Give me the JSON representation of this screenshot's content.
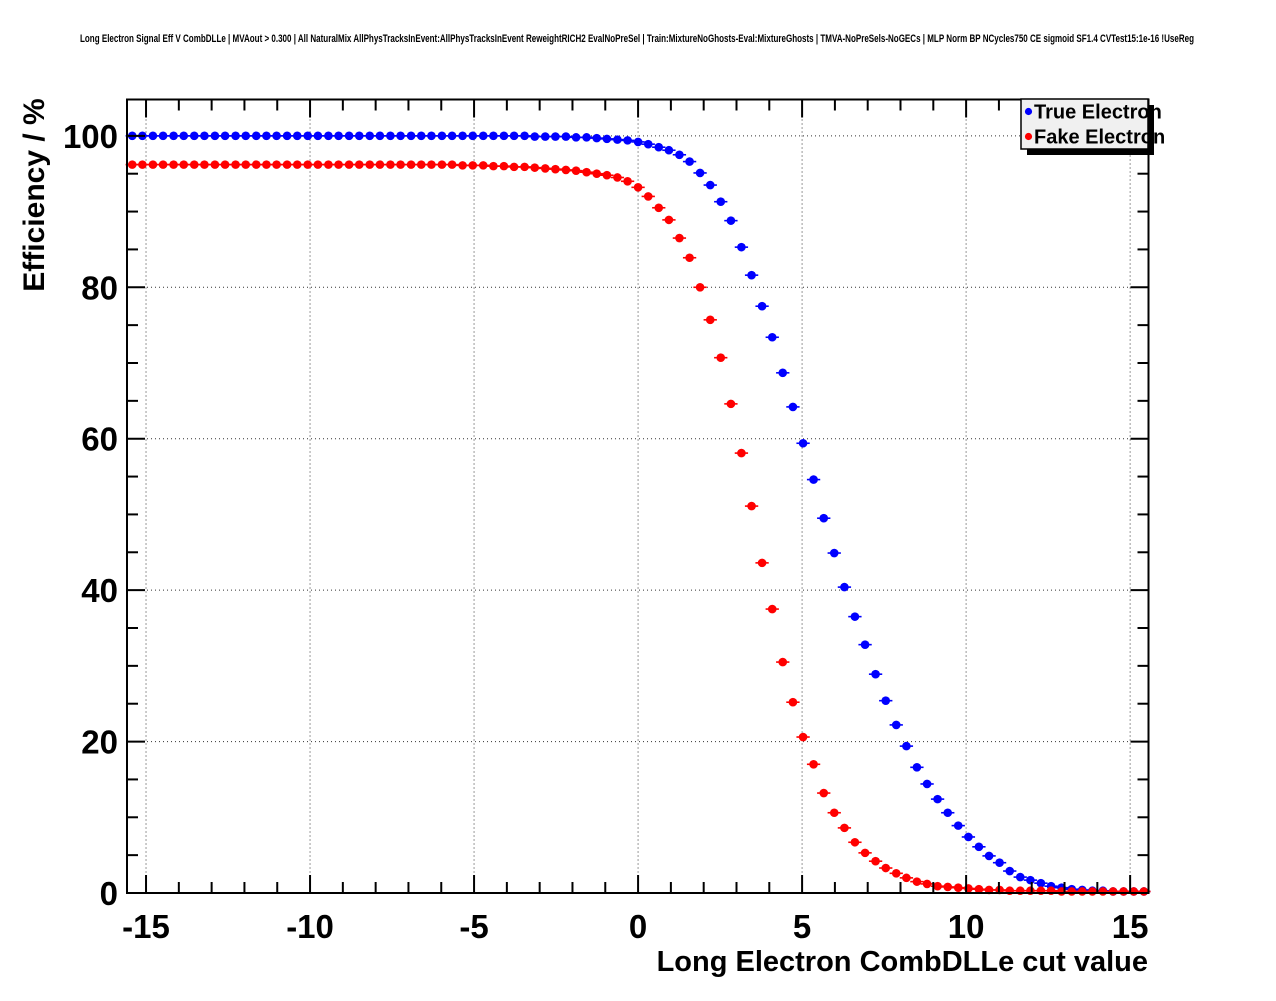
{
  "title": "Long Electron Signal Eff V CombDLLe | MVAout > 0.300 | All NaturalMix AllPhysTracksInEvent:AllPhysTracksInEvent ReweightRICH2 EvalNoPreSel | Train:MixtureNoGhosts-Eval:MixtureGhosts | TMVA-NoPreSels-NoGECs | MLP Norm BP NCycles750 CE sigmoid SF1.4 CVTest15:1e-16 !UseReg",
  "legend": {
    "items": [
      {
        "label": "True Electron",
        "color": "#0000ff"
      },
      {
        "label": "Fake Electron",
        "color": "#ff0000"
      }
    ]
  },
  "axes": {
    "x": {
      "label": "Long Electron CombDLLe cut value",
      "min": -15.58,
      "max": 15.56,
      "major_ticks": [
        -15,
        -10,
        -5,
        0,
        5,
        10,
        15
      ],
      "minor_tick_step": 1,
      "grid": true
    },
    "y": {
      "label": "Efficiency / %",
      "min": 0,
      "max": 104.8,
      "major_ticks": [
        0,
        20,
        40,
        60,
        80,
        100
      ],
      "minor_tick_step": 5,
      "grid": true
    }
  },
  "colors": {
    "background": "#ffffff",
    "frame": "#000000",
    "grid": "#000000",
    "legend_fill": "#f0f0f0",
    "legend_shadow": "#000000",
    "true_electron": "#0000ff",
    "fake_electron": "#ff0000"
  },
  "chart_data": {
    "type": "scatter",
    "title": "Long Electron Signal Eff V CombDLLe | MVAout > 0.300 | All NaturalMix AllPhysTracksInEvent:AllPhysTracksInEvent ReweightRICH2 EvalNoPreSel | Train:MixtureNoGhosts-Eval:MixtureGhosts | TMVA-NoPreSels-NoGECs | MLP Norm BP NCycles750 CE sigmoid SF1.4 CVTest15:1e-16 !UseReg",
    "xlabel": "Long Electron CombDLLe cut value",
    "ylabel": "Efficiency / %",
    "xlim": [
      -15.58,
      15.56
    ],
    "ylim": [
      0,
      104.8
    ],
    "grid": true,
    "legend_position": "top-right",
    "marker": "filled-circle-with-x-error-bars",
    "x": [
      -15.42,
      -15.11,
      -14.79,
      -14.48,
      -14.16,
      -13.85,
      -13.53,
      -13.22,
      -12.9,
      -12.59,
      -12.27,
      -11.96,
      -11.64,
      -11.33,
      -11.02,
      -10.7,
      -10.39,
      -10.07,
      -9.76,
      -9.44,
      -9.13,
      -8.81,
      -8.5,
      -8.18,
      -7.87,
      -7.55,
      -7.24,
      -6.92,
      -6.61,
      -6.3,
      -5.98,
      -5.67,
      -5.35,
      -5.04,
      -4.72,
      -4.41,
      -4.09,
      -3.78,
      -3.46,
      -3.15,
      -2.83,
      -2.52,
      -2.2,
      -1.89,
      -1.57,
      -1.26,
      -0.95,
      -0.63,
      -0.32,
      0,
      0.31,
      0.63,
      0.94,
      1.26,
      1.57,
      1.89,
      2.2,
      2.52,
      2.83,
      3.15,
      3.46,
      3.78,
      4.09,
      4.41,
      4.72,
      5.03,
      5.35,
      5.66,
      5.98,
      6.29,
      6.61,
      6.92,
      7.24,
      7.55,
      7.87,
      8.18,
      8.5,
      8.81,
      9.13,
      9.44,
      9.76,
      10.07,
      10.39,
      10.7,
      11.02,
      11.33,
      11.65,
      11.96,
      12.28,
      12.59,
      12.91,
      13.22,
      13.54,
      13.85,
      14.17,
      14.48,
      14.8,
      15.11,
      15.42
    ],
    "x_error_half_width": 0.157,
    "series": [
      {
        "name": "True Electron",
        "color": "#0000ff",
        "values": [
          100,
          100,
          100,
          100,
          100,
          100,
          100,
          100,
          100,
          100,
          100,
          100,
          100,
          100,
          100,
          100,
          100,
          100,
          100,
          100,
          100,
          100,
          100,
          100,
          100,
          100,
          100,
          100,
          100,
          100,
          100,
          100,
          100,
          100,
          100,
          100,
          100,
          100,
          100,
          99.9,
          99.9,
          99.9,
          99.9,
          99.8,
          99.8,
          99.7,
          99.6,
          99.5,
          99.4,
          99.2,
          98.9,
          98.5,
          98.1,
          97.5,
          96.6,
          95.1,
          93.5,
          91.3,
          88.8,
          85.3,
          81.6,
          77.5,
          73.4,
          68.7,
          64.2,
          59.4,
          54.6,
          49.5,
          44.9,
          40.4,
          36.5,
          32.8,
          28.9,
          25.4,
          22.2,
          19.4,
          16.6,
          14.4,
          12.4,
          10.6,
          8.9,
          7.4,
          6.1,
          4.9,
          4.0,
          2.9,
          2.1,
          1.7,
          1.3,
          0.9,
          0.7,
          0.5,
          0.4,
          0.3,
          0.3,
          0.2,
          0.2,
          0.2,
          0.2
        ]
      },
      {
        "name": "Fake Electron",
        "color": "#ff0000",
        "values": [
          96.2,
          96.2,
          96.2,
          96.2,
          96.2,
          96.2,
          96.2,
          96.2,
          96.2,
          96.2,
          96.2,
          96.2,
          96.2,
          96.2,
          96.2,
          96.2,
          96.2,
          96.2,
          96.2,
          96.2,
          96.2,
          96.2,
          96.2,
          96.2,
          96.2,
          96.2,
          96.2,
          96.2,
          96.2,
          96.2,
          96.2,
          96.2,
          96.1,
          96.1,
          96.1,
          96.0,
          96.0,
          95.9,
          95.9,
          95.8,
          95.7,
          95.6,
          95.5,
          95.4,
          95.2,
          95.0,
          94.8,
          94.5,
          94.0,
          93.2,
          92.0,
          90.5,
          88.9,
          86.5,
          83.9,
          80.0,
          75.7,
          70.7,
          64.6,
          58.1,
          51.1,
          43.6,
          37.5,
          30.5,
          25.2,
          20.6,
          17.0,
          13.2,
          10.6,
          8.6,
          6.7,
          5.3,
          4.2,
          3.3,
          2.6,
          2.0,
          1.5,
          1.2,
          0.9,
          0.8,
          0.7,
          0.6,
          0.5,
          0.4,
          0.4,
          0.3,
          0.3,
          0.3,
          0.3,
          0.3,
          0.2,
          0.2,
          0.2,
          0.2,
          0.2,
          0.2,
          0.2,
          0.2,
          0.2
        ]
      }
    ]
  }
}
